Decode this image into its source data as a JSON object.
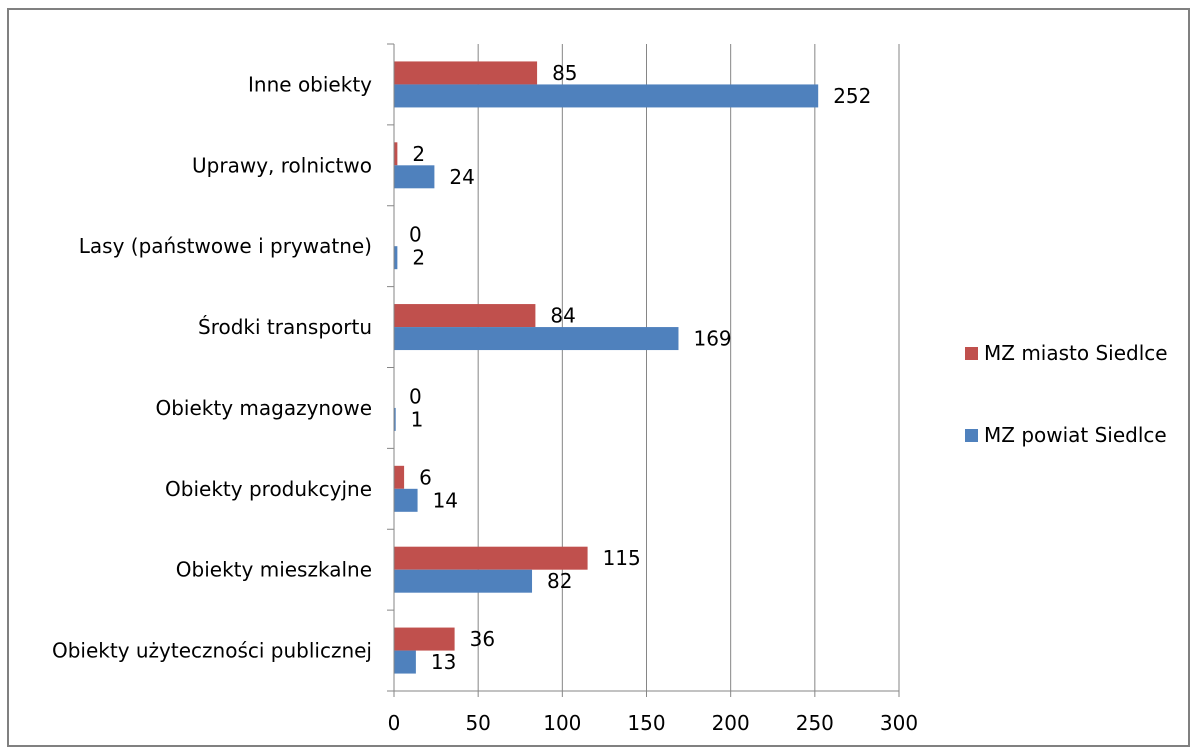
{
  "chart_data": {
    "type": "bar",
    "orientation": "horizontal",
    "categories": [
      "Inne obiekty",
      "Uprawy, rolnictwo",
      "Lasy (państwowe i prywatne)",
      "Środki transportu",
      "Obiekty magazynowe",
      "Obiekty produkcyjne",
      "Obiekty mieszkalne",
      "Obiekty użyteczności publicznej"
    ],
    "series": [
      {
        "name": "MZ miasto Siedlce",
        "color": "#C0504D",
        "values": [
          85,
          2,
          0,
          84,
          0,
          6,
          115,
          36
        ]
      },
      {
        "name": "MZ powiat Siedlce",
        "color": "#4F81BD",
        "values": [
          252,
          24,
          2,
          169,
          1,
          14,
          82,
          13
        ]
      }
    ],
    "xlim": [
      0,
      300
    ],
    "xticks": [
      0,
      50,
      100,
      150,
      200,
      250,
      300
    ],
    "grid": true,
    "legend_position": "right",
    "data_labels": true
  }
}
